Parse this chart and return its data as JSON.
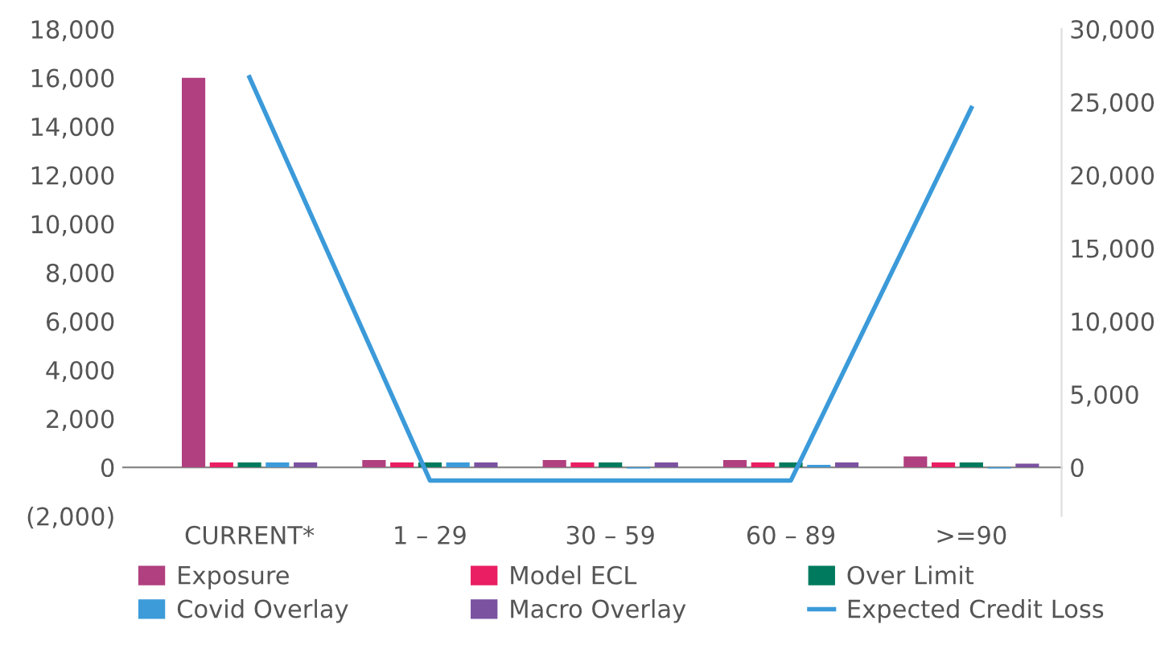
{
  "chart_data": {
    "type": "bar",
    "categories": [
      "CURRENT*",
      "1 – 29",
      "30 – 59",
      "60 – 89",
      ">=90"
    ],
    "series": [
      {
        "name": "Exposure",
        "color": "#b0407f",
        "values": [
          16000,
          300,
          300,
          300,
          450
        ]
      },
      {
        "name": "Model ECL",
        "color": "#e91e63",
        "values": [
          200,
          200,
          200,
          200,
          200
        ]
      },
      {
        "name": "Over Limit",
        "color": "#007a5e",
        "values": [
          200,
          200,
          200,
          200,
          200
        ]
      },
      {
        "name": "Covid Overlay",
        "color": "#3d9bd9",
        "values": [
          200,
          200,
          -50,
          100,
          -50
        ]
      },
      {
        "name": "Macro Overlay",
        "color": "#7b52a0",
        "values": [
          200,
          200,
          200,
          200,
          150
        ]
      },
      {
        "name": "Expected Credit Loss",
        "color": "#3b9ad9",
        "type": "line",
        "axis": "y2",
        "values": [
          26700,
          -900,
          -900,
          -900,
          24600
        ]
      }
    ],
    "ylim": [
      -2000,
      18000
    ],
    "yticks": [
      {
        "value": -2000,
        "label": "(2,000)"
      },
      0,
      {
        "value": 2000,
        "label": "2,000"
      },
      {
        "value": 4000,
        "label": "4,000"
      },
      {
        "value": 6000,
        "label": "6,000"
      },
      {
        "value": 8000,
        "label": "8,000"
      },
      {
        "value": 10000,
        "label": "10,000"
      },
      {
        "value": 12000,
        "label": "12,000"
      },
      {
        "value": 14000,
        "label": "14,000"
      },
      {
        "value": 16000,
        "label": "16,000"
      },
      {
        "value": 18000,
        "label": "18,000"
      }
    ],
    "y2lim": [
      -3333,
      30000
    ],
    "y2ticks": [
      0,
      {
        "value": 5000,
        "label": "5,000"
      },
      {
        "value": 10000,
        "label": "10,000"
      },
      {
        "value": 15000,
        "label": "15,000"
      },
      {
        "value": 20000,
        "label": "20,000"
      },
      {
        "value": 25000,
        "label": "25,000"
      },
      {
        "value": 30000,
        "label": "30,000"
      }
    ],
    "legend": "bottom",
    "grid": false
  }
}
